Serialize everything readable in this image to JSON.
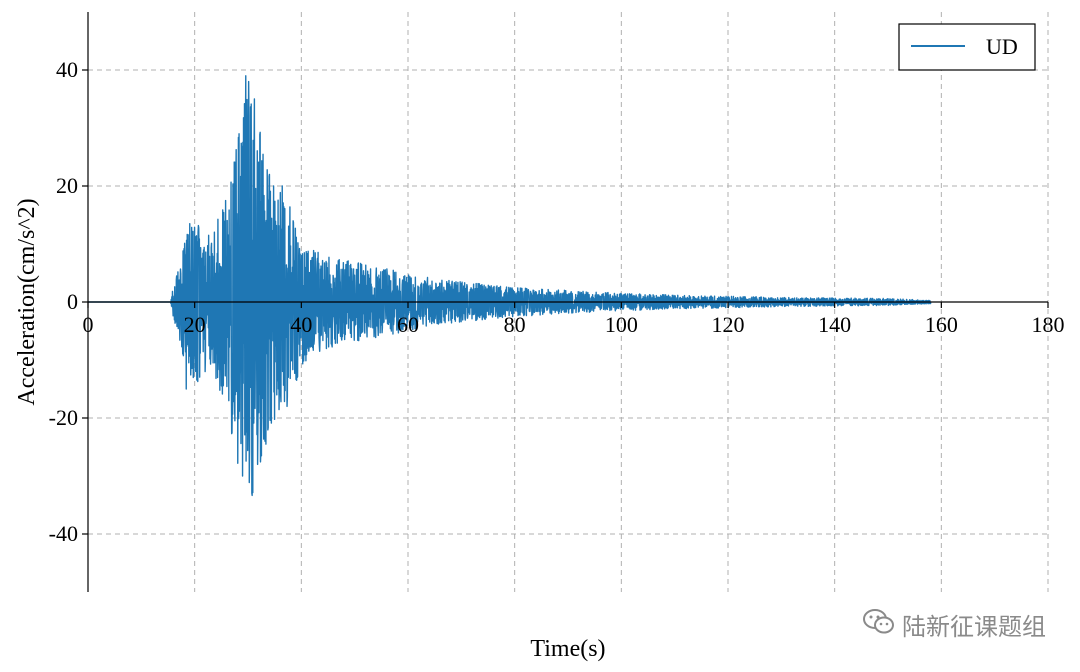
{
  "chart_data": {
    "type": "line",
    "xlabel": "Time(s)",
    "ylabel": "Acceleration(cm/s^2)",
    "xlim": [
      0,
      180
    ],
    "ylim": [
      -50,
      50
    ],
    "xticks": [
      0,
      20,
      40,
      60,
      80,
      100,
      120,
      140,
      160,
      180
    ],
    "yticks": [
      -40,
      -20,
      0,
      20,
      40
    ],
    "grid": true,
    "legend_position": "top-right",
    "series": [
      {
        "name": "UD",
        "color": "#1f77b4",
        "duration": 158,
        "envelope": [
          [
            0,
            0
          ],
          [
            15.5,
            0
          ],
          [
            16,
            3
          ],
          [
            17,
            6
          ],
          [
            18,
            10
          ],
          [
            19,
            13
          ],
          [
            20,
            14
          ],
          [
            21,
            14
          ],
          [
            22,
            13
          ],
          [
            23,
            12
          ],
          [
            24,
            14
          ],
          [
            25,
            16
          ],
          [
            26,
            19
          ],
          [
            27,
            23
          ],
          [
            28,
            28
          ],
          [
            29,
            36
          ],
          [
            30,
            37
          ],
          [
            31,
            35
          ],
          [
            32,
            31
          ],
          [
            33,
            27
          ],
          [
            34,
            22
          ],
          [
            35,
            21
          ],
          [
            36,
            20
          ],
          [
            37,
            18
          ],
          [
            38,
            17
          ],
          [
            39,
            14
          ],
          [
            40,
            11
          ],
          [
            42,
            9
          ],
          [
            45,
            8
          ],
          [
            50,
            7
          ],
          [
            55,
            6
          ],
          [
            60,
            5
          ],
          [
            65,
            4
          ],
          [
            70,
            3.5
          ],
          [
            80,
            2.5
          ],
          [
            90,
            2
          ],
          [
            100,
            1.5
          ],
          [
            110,
            1.2
          ],
          [
            120,
            1
          ],
          [
            130,
            0.8
          ],
          [
            140,
            0.7
          ],
          [
            150,
            0.6
          ],
          [
            158,
            0.3
          ]
        ],
        "peak_points": [
          [
            29.6,
            39
          ],
          [
            30.7,
            -33
          ],
          [
            30.1,
            38
          ],
          [
            31.2,
            35
          ],
          [
            28.3,
            29
          ],
          [
            29.0,
            -30
          ],
          [
            31.8,
            -28
          ],
          [
            32.4,
            -26
          ],
          [
            19.1,
            13.5
          ],
          [
            18.4,
            -15
          ],
          [
            36.4,
            20
          ],
          [
            37.3,
            -18
          ],
          [
            34.0,
            22
          ],
          [
            33.2,
            -24
          ]
        ]
      }
    ]
  },
  "watermark": {
    "text": "陆新征课题组",
    "icon": "wechat-icon"
  }
}
